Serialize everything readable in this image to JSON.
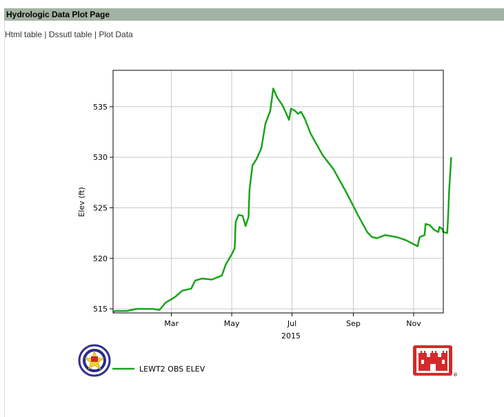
{
  "header": {
    "title": "Hydrologic Data Plot Page"
  },
  "nav": {
    "links": [
      "Html table",
      "Dssutl table",
      "Plot Data"
    ],
    "separator": "|"
  },
  "colors": {
    "series": "#1aa31a",
    "title_bar": "#a3b3a3",
    "grid": "#c8c8c8"
  },
  "icons": [
    "district-seal-icon",
    "usace-castle-icon"
  ],
  "chart_data": {
    "type": "line",
    "title": "",
    "xlabel": "2015",
    "ylabel": "Elev (ft)",
    "x_ticks": [
      "Mar",
      "May",
      "Jul",
      "Sep",
      "Nov"
    ],
    "y_ticks": [
      "515",
      "520",
      "525",
      "530",
      "535"
    ],
    "ylim": [
      514.6,
      538.6
    ],
    "xlim": [
      "2015-01-01",
      "2015-12-01"
    ],
    "grid": true,
    "legend": "bottom",
    "series": [
      {
        "name": "LEWT2 OBS ELEV",
        "color": "#1aa31a",
        "points": [
          [
            "2015-01-01",
            514.7
          ],
          [
            "2015-01-03",
            514.8
          ],
          [
            "2015-01-10",
            514.8
          ],
          [
            "2015-01-15",
            514.8
          ],
          [
            "2015-01-20",
            514.9
          ],
          [
            "2015-01-25",
            515.0
          ],
          [
            "2015-01-31",
            515.0
          ],
          [
            "2015-02-10",
            515.0
          ],
          [
            "2015-02-17",
            514.9
          ],
          [
            "2015-02-23",
            515.6
          ],
          [
            "2015-03-05",
            516.2
          ],
          [
            "2015-03-12",
            516.8
          ],
          [
            "2015-03-21",
            517.0
          ],
          [
            "2015-03-25",
            517.8
          ],
          [
            "2015-04-01",
            518.0
          ],
          [
            "2015-04-11",
            517.9
          ],
          [
            "2015-04-16",
            518.1
          ],
          [
            "2015-04-21",
            518.3
          ],
          [
            "2015-04-25",
            519.4
          ],
          [
            "2015-05-01",
            520.4
          ],
          [
            "2015-05-04",
            521.0
          ],
          [
            "2015-05-05",
            523.6
          ],
          [
            "2015-05-08",
            524.3
          ],
          [
            "2015-05-12",
            524.2
          ],
          [
            "2015-05-15",
            523.2
          ],
          [
            "2015-05-18",
            524.1
          ],
          [
            "2015-05-19",
            526.8
          ],
          [
            "2015-05-22",
            529.2
          ],
          [
            "2015-05-26",
            529.8
          ],
          [
            "2015-05-31",
            530.9
          ],
          [
            "2015-06-04",
            533.3
          ],
          [
            "2015-06-09",
            534.6
          ],
          [
            "2015-06-12",
            536.8
          ],
          [
            "2015-06-16",
            535.9
          ],
          [
            "2015-06-21",
            535.2
          ],
          [
            "2015-06-23",
            534.8
          ],
          [
            "2015-06-28",
            533.7
          ],
          [
            "2015-06-30",
            534.8
          ],
          [
            "2015-07-04",
            534.6
          ],
          [
            "2015-07-07",
            534.3
          ],
          [
            "2015-07-10",
            534.5
          ],
          [
            "2015-07-14",
            533.8
          ],
          [
            "2015-07-20",
            532.3
          ],
          [
            "2015-08-01",
            530.2
          ],
          [
            "2015-08-12",
            528.8
          ],
          [
            "2015-08-25",
            526.5
          ],
          [
            "2015-09-05",
            524.4
          ],
          [
            "2015-09-15",
            522.6
          ],
          [
            "2015-09-20",
            522.1
          ],
          [
            "2015-09-25",
            522.0
          ],
          [
            "2015-10-03",
            522.3
          ],
          [
            "2015-10-15",
            522.1
          ],
          [
            "2015-10-24",
            521.8
          ],
          [
            "2015-11-05",
            521.2
          ],
          [
            "2015-11-07",
            522.1
          ],
          [
            "2015-11-12",
            522.3
          ],
          [
            "2015-11-13",
            523.4
          ],
          [
            "2015-11-17",
            523.3
          ],
          [
            "2015-11-22",
            522.8
          ],
          [
            "2015-11-26",
            522.6
          ],
          [
            "2015-11-27",
            523.1
          ],
          [
            "2015-11-30",
            522.9
          ],
          [
            "2015-12-01",
            522.6
          ],
          [
            "2015-12-05",
            522.5
          ],
          [
            "2015-12-06",
            524.5
          ],
          [
            "2015-12-07",
            526.9
          ],
          [
            "2015-12-09",
            530.0
          ]
        ]
      }
    ]
  }
}
